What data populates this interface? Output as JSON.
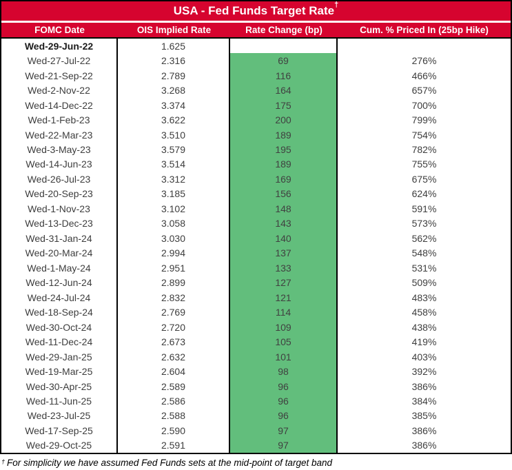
{
  "title": {
    "text": "USA - Fed Funds Target Rate",
    "sup": "†"
  },
  "columns": [
    "FOMC Date",
    "OIS Implied Rate",
    "Rate Change (bp)",
    "Cum. % Priced In (25bp Hike)"
  ],
  "rows": [
    {
      "date": "Wed-29-Jun-22",
      "ois": "1.625",
      "change": "",
      "cum": ""
    },
    {
      "date": "Wed-27-Jul-22",
      "ois": "2.316",
      "change": "69",
      "cum": "276%"
    },
    {
      "date": "Wed-21-Sep-22",
      "ois": "2.789",
      "change": "116",
      "cum": "466%"
    },
    {
      "date": "Wed-2-Nov-22",
      "ois": "3.268",
      "change": "164",
      "cum": "657%"
    },
    {
      "date": "Wed-14-Dec-22",
      "ois": "3.374",
      "change": "175",
      "cum": "700%"
    },
    {
      "date": "Wed-1-Feb-23",
      "ois": "3.622",
      "change": "200",
      "cum": "799%"
    },
    {
      "date": "Wed-22-Mar-23",
      "ois": "3.510",
      "change": "189",
      "cum": "754%"
    },
    {
      "date": "Wed-3-May-23",
      "ois": "3.579",
      "change": "195",
      "cum": "782%"
    },
    {
      "date": "Wed-14-Jun-23",
      "ois": "3.514",
      "change": "189",
      "cum": "755%"
    },
    {
      "date": "Wed-26-Jul-23",
      "ois": "3.312",
      "change": "169",
      "cum": "675%"
    },
    {
      "date": "Wed-20-Sep-23",
      "ois": "3.185",
      "change": "156",
      "cum": "624%"
    },
    {
      "date": "Wed-1-Nov-23",
      "ois": "3.102",
      "change": "148",
      "cum": "591%"
    },
    {
      "date": "Wed-13-Dec-23",
      "ois": "3.058",
      "change": "143",
      "cum": "573%"
    },
    {
      "date": "Wed-31-Jan-24",
      "ois": "3.030",
      "change": "140",
      "cum": "562%"
    },
    {
      "date": "Wed-20-Mar-24",
      "ois": "2.994",
      "change": "137",
      "cum": "548%"
    },
    {
      "date": "Wed-1-May-24",
      "ois": "2.951",
      "change": "133",
      "cum": "531%"
    },
    {
      "date": "Wed-12-Jun-24",
      "ois": "2.899",
      "change": "127",
      "cum": "509%"
    },
    {
      "date": "Wed-24-Jul-24",
      "ois": "2.832",
      "change": "121",
      "cum": "483%"
    },
    {
      "date": "Wed-18-Sep-24",
      "ois": "2.769",
      "change": "114",
      "cum": "458%"
    },
    {
      "date": "Wed-30-Oct-24",
      "ois": "2.720",
      "change": "109",
      "cum": "438%"
    },
    {
      "date": "Wed-11-Dec-24",
      "ois": "2.673",
      "change": "105",
      "cum": "419%"
    },
    {
      "date": "Wed-29-Jan-25",
      "ois": "2.632",
      "change": "101",
      "cum": "403%"
    },
    {
      "date": "Wed-19-Mar-25",
      "ois": "2.604",
      "change": "98",
      "cum": "392%"
    },
    {
      "date": "Wed-30-Apr-25",
      "ois": "2.589",
      "change": "96",
      "cum": "386%"
    },
    {
      "date": "Wed-11-Jun-25",
      "ois": "2.586",
      "change": "96",
      "cum": "384%"
    },
    {
      "date": "Wed-23-Jul-25",
      "ois": "2.588",
      "change": "96",
      "cum": "385%"
    },
    {
      "date": "Wed-17-Sep-25",
      "ois": "2.590",
      "change": "97",
      "cum": "386%"
    },
    {
      "date": "Wed-29-Oct-25",
      "ois": "2.591",
      "change": "97",
      "cum": "386%"
    }
  ],
  "footnote": {
    "sup": "†",
    "text": "For simplicity we have assumed Fed Funds sets at the mid-point of target band"
  },
  "colors": {
    "header_red": "#d6042f",
    "cell_green": "#62be7c",
    "border_black": "#000000",
    "text_gray": "#3d3d3d"
  }
}
